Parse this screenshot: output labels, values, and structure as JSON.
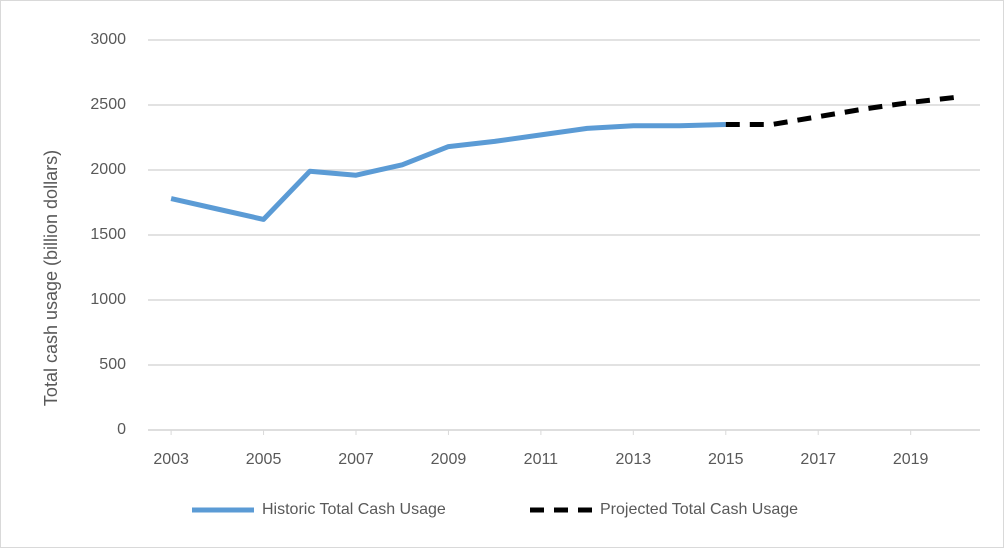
{
  "chart_data": {
    "type": "line",
    "y_label": "Total cash usage (billion dollars)",
    "x": [
      2003,
      2004,
      2005,
      2006,
      2007,
      2008,
      2009,
      2010,
      2011,
      2012,
      2013,
      2014,
      2015,
      2016,
      2017,
      2018,
      2019,
      2020
    ],
    "xlim": [
      2002.5,
      2020.5
    ],
    "xticks": [
      2003,
      2005,
      2007,
      2009,
      2011,
      2013,
      2015,
      2017,
      2019
    ],
    "ylim": [
      0,
      3000
    ],
    "yticks": [
      0,
      500,
      1000,
      1500,
      2000,
      2500,
      3000
    ],
    "grid": true,
    "legend": "bottom",
    "series": [
      {
        "name": "Historic Total Cash Usage",
        "color": "#5b9bd5",
        "dashed": false,
        "values": [
          1780,
          1700,
          1620,
          1990,
          1960,
          2040,
          2180,
          2220,
          2270,
          2320,
          2340,
          2340,
          2350,
          null,
          null,
          null,
          null,
          null
        ]
      },
      {
        "name": "Projected Total Cash Usage",
        "color": "#000000",
        "dashed": true,
        "values": [
          null,
          null,
          null,
          null,
          null,
          null,
          null,
          null,
          null,
          null,
          null,
          null,
          2350,
          2350,
          2410,
          2470,
          2520,
          2560
        ]
      }
    ]
  }
}
